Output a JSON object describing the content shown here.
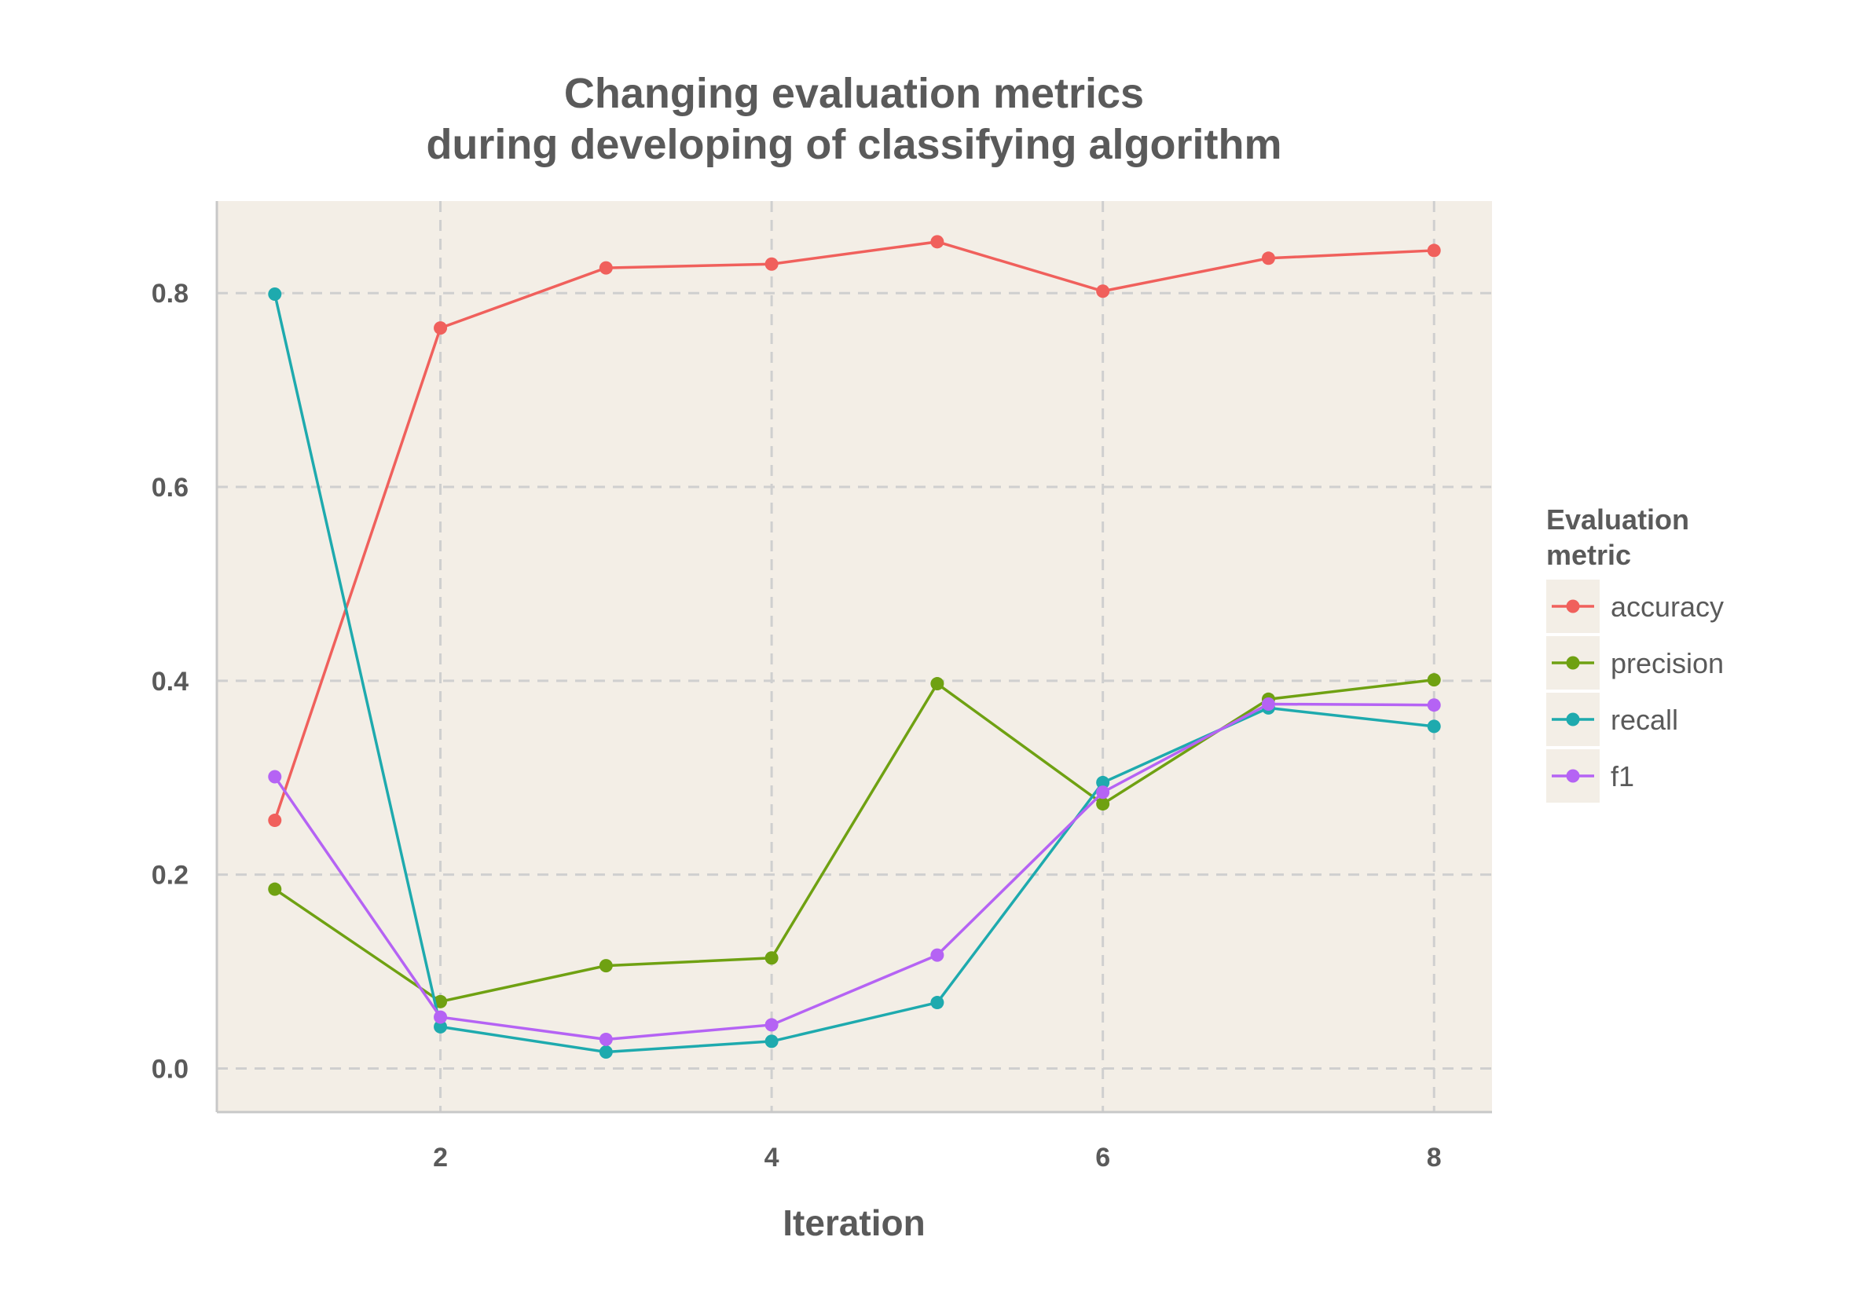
{
  "chart_data": {
    "type": "line",
    "title": [
      "Changing evaluation metrics",
      "during developing of classifying algorithm"
    ],
    "xlabel": "Iteration",
    "ylabel": "",
    "x": [
      1,
      2,
      3,
      4,
      5,
      6,
      7,
      8
    ],
    "xlim": [
      0.65,
      8.35
    ],
    "ylim": [
      -0.045,
      0.895
    ],
    "xticks": [
      2,
      4,
      6,
      8
    ],
    "xtick_labels": [
      "2",
      "4",
      "6",
      "8"
    ],
    "yticks": [
      0.0,
      0.2,
      0.4,
      0.6,
      0.8
    ],
    "ytick_labels": [
      "0.0",
      "0.2",
      "0.4",
      "0.6",
      "0.8"
    ],
    "grid": true,
    "legend": {
      "title": [
        "Evaluation",
        "metric"
      ],
      "position": "right"
    },
    "series": [
      {
        "name": "accuracy",
        "color": "#F0605C",
        "values": [
          0.256,
          0.764,
          0.826,
          0.83,
          0.853,
          0.802,
          0.836,
          0.844
        ]
      },
      {
        "name": "precision",
        "color": "#6FA112",
        "values": [
          0.185,
          0.069,
          0.106,
          0.114,
          0.397,
          0.273,
          0.381,
          0.401
        ]
      },
      {
        "name": "recall",
        "color": "#1EAAAE",
        "values": [
          0.799,
          0.043,
          0.017,
          0.028,
          0.068,
          0.295,
          0.372,
          0.353
        ]
      },
      {
        "name": "f1",
        "color": "#B563F4",
        "values": [
          0.301,
          0.053,
          0.03,
          0.045,
          0.117,
          0.285,
          0.376,
          0.375
        ]
      }
    ]
  }
}
